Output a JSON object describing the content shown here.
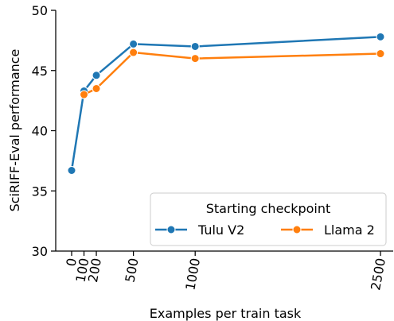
{
  "chart_data": {
    "type": "line",
    "xlabel": "Examples per train task",
    "ylabel": "SciRIFF-Eval performance",
    "x": [
      0,
      100,
      200,
      500,
      1000,
      2500
    ],
    "xticks": [
      0,
      100,
      200,
      500,
      1000,
      2500
    ],
    "xtick_labels": [
      "0",
      "100",
      "200",
      "500",
      "1000",
      "2500"
    ],
    "yticks": [
      30,
      35,
      40,
      45,
      50
    ],
    "ytick_labels": [
      "30",
      "35",
      "40",
      "45",
      "50"
    ],
    "ylim": [
      30,
      50
    ],
    "grid": false,
    "legend": {
      "title": "Starting checkpoint",
      "placement": "lower-right",
      "entries": [
        "Tulu V2",
        "Llama 2"
      ]
    },
    "series": [
      {
        "name": "Tulu V2",
        "color": "#1f77b4",
        "values": [
          36.7,
          43.3,
          44.6,
          47.2,
          47.0,
          47.8
        ]
      },
      {
        "name": "Llama 2",
        "color": "#ff7f0e",
        "values": [
          null,
          43.0,
          43.5,
          46.5,
          46.0,
          46.4
        ]
      }
    ]
  }
}
